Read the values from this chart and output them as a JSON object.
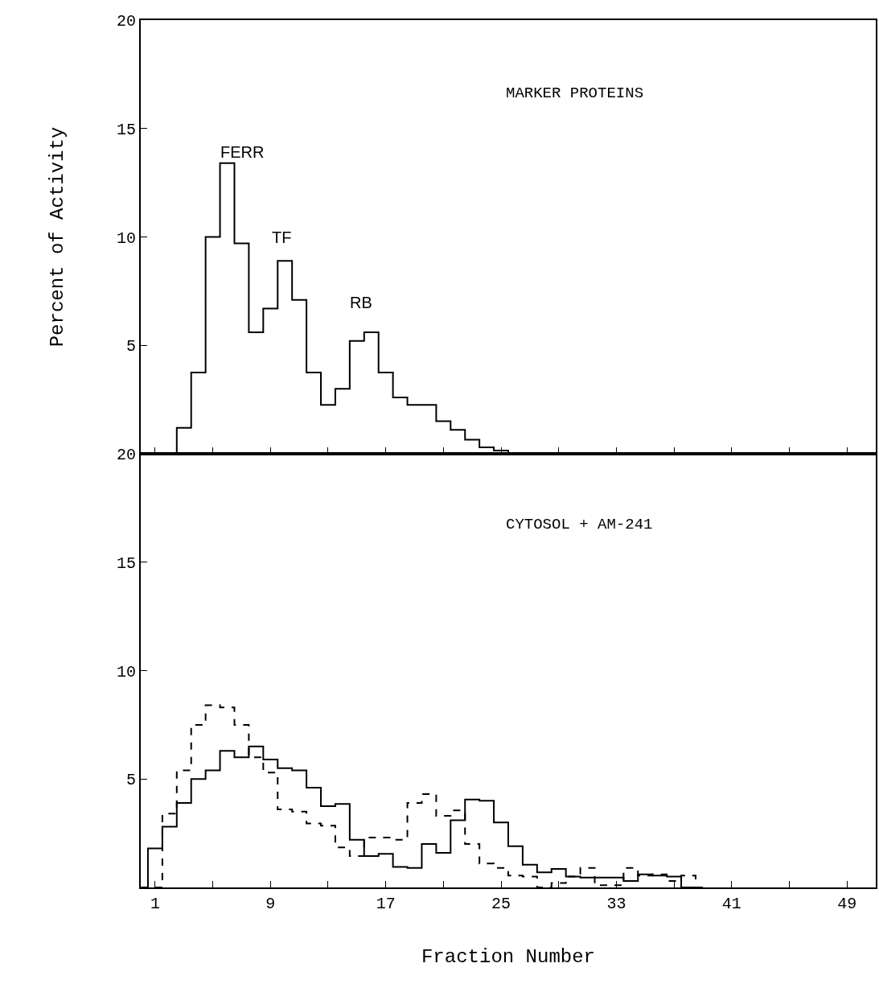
{
  "chart_data": [
    {
      "type": "step",
      "ylabel": "Percent of Activity",
      "annotations": [
        "MARKER PROTEINS",
        "FERR",
        "TF",
        "RB"
      ],
      "xlim": [
        0,
        51
      ],
      "ylim": [
        0,
        20
      ],
      "xticks": [
        {
          "value": 1,
          "label": null
        },
        {
          "value": 5,
          "label": null
        },
        {
          "value": 9,
          "label": null
        },
        {
          "value": 13,
          "label": null
        },
        {
          "value": 17,
          "label": null
        },
        {
          "value": 21,
          "label": null
        },
        {
          "value": 25,
          "label": null
        },
        {
          "value": 29,
          "label": null
        },
        {
          "value": 33,
          "label": null
        },
        {
          "value": 37,
          "label": null
        },
        {
          "value": 41,
          "label": null
        },
        {
          "value": 45,
          "label": null
        },
        {
          "value": 49,
          "label": null
        }
      ],
      "yticks": [
        5,
        10,
        15,
        20
      ],
      "tick_labels": "y",
      "grid": false,
      "x": [
        2,
        3,
        4,
        5,
        6,
        7,
        8,
        9,
        10,
        11,
        12,
        13,
        14,
        15,
        16,
        17,
        18,
        19,
        20,
        21,
        22,
        23,
        24,
        25,
        26
      ],
      "series": [
        {
          "color": "#000000",
          "line_style": "solid",
          "values": [
            0,
            1.2,
            3.75,
            10.0,
            13.4,
            9.7,
            5.6,
            6.7,
            8.9,
            7.1,
            3.75,
            2.25,
            3.0,
            5.2,
            5.6,
            3.75,
            2.6,
            2.25,
            2.25,
            1.5,
            1.1,
            0.65,
            0.3,
            0.15,
            0
          ]
        }
      ]
    },
    {
      "type": "step",
      "xlabel": "Fraction Number",
      "annotations": [
        "CYTOSOL + AM-241"
      ],
      "xlim": [
        0,
        51
      ],
      "ylim": [
        0,
        20
      ],
      "xticks": [
        1,
        {
          "value": 5,
          "label": null
        },
        9,
        {
          "value": 13,
          "label": null
        },
        17,
        {
          "value": 21,
          "label": null
        },
        25,
        {
          "value": 29,
          "label": null
        },
        33,
        {
          "value": 37,
          "label": null
        },
        41,
        {
          "value": 45,
          "label": null
        },
        49
      ],
      "yticks": [
        5,
        10,
        15,
        20
      ],
      "grid": false,
      "x": [
        0,
        1,
        2,
        3,
        4,
        5,
        6,
        7,
        8,
        9,
        10,
        11,
        12,
        13,
        14,
        15,
        16,
        17,
        18,
        19,
        20,
        21,
        22,
        23,
        24,
        25,
        26,
        27,
        28,
        29,
        30,
        31,
        32,
        33,
        34,
        35,
        36,
        37,
        38,
        39
      ],
      "series": [
        {
          "color": "#000000",
          "line_style": "solid",
          "values": [
            0,
            1.8,
            2.8,
            3.9,
            5.0,
            5.4,
            6.3,
            6.0,
            6.5,
            5.9,
            5.5,
            5.4,
            4.6,
            3.75,
            3.85,
            2.2,
            1.45,
            1.55,
            0.95,
            0.9,
            2.0,
            1.6,
            3.1,
            4.05,
            4.0,
            3.0,
            1.9,
            1.05,
            0.7,
            0.85,
            0.5,
            0.45,
            0.45,
            0.45,
            0.3,
            0.6,
            0.55,
            0.5,
            0,
            0
          ]
        },
        {
          "color": "#000000",
          "line_style": "dashed",
          "values": [
            0,
            0,
            3.4,
            5.4,
            7.5,
            8.4,
            8.3,
            7.5,
            6.0,
            5.3,
            3.6,
            3.5,
            2.95,
            2.85,
            1.85,
            1.45,
            2.3,
            2.3,
            2.2,
            3.9,
            4.3,
            3.3,
            3.55,
            2.0,
            1.1,
            0.9,
            0.55,
            0.5,
            0,
            0.2,
            0.5,
            0.9,
            0.1,
            0.1,
            0.9,
            0.55,
            0.6,
            0.3,
            0.55,
            0
          ]
        }
      ]
    }
  ]
}
